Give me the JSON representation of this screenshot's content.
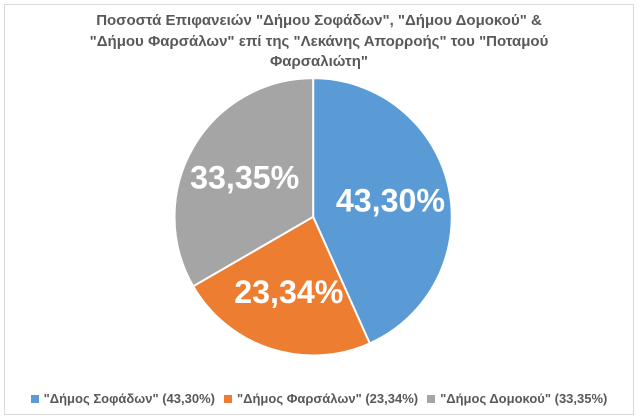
{
  "title": "Ποσοστά Επιφανειών \"Δήμου Σοφάδων\", \"Δήμου Δομοκού\" & \"Δήμου Φαρσάλων\" επί της \"Λεκάνης Απορροής\" του \"Ποταμού Φαρσαλιώτη\"",
  "chart_data": {
    "type": "pie",
    "title": "Ποσοστά Επιφανειών \"Δήμου Σοφάδων\", \"Δήμου Δομοκού\" & \"Δήμου Φαρσάλων\" επί της \"Λεκάνης Απορροής\" του \"Ποταμού Φαρσαλιώτη\"",
    "start_angle_deg": 0,
    "direction": "clockwise",
    "legend_position": "bottom",
    "slices": [
      {
        "name": "\"Δήμος Σοφάδων\"",
        "value": 43.3,
        "display": "43,30%",
        "legend_text": "\"Δήμος Σοφάδων\" (43,30%)",
        "color": "#5B9BD5"
      },
      {
        "name": "\"Δήμος Φαρσάλων\"",
        "value": 23.34,
        "display": "23,34%",
        "legend_text": "\"Δήμος Φαρσάλων\" (23,34%)",
        "color": "#ED7D31"
      },
      {
        "name": "\"Δήμος Δομοκού\"",
        "value": 33.35,
        "display": "33,35%",
        "legend_text": "\"Δήμος Δομοκού\" (33,35%)",
        "color": "#A5A5A5"
      }
    ]
  },
  "colors": {
    "title_text": "#595959",
    "legend_text": "#595959",
    "slice_label_text": "#FFFFFF",
    "frame_border": "#D9D9D9",
    "background": "#FFFFFF"
  }
}
